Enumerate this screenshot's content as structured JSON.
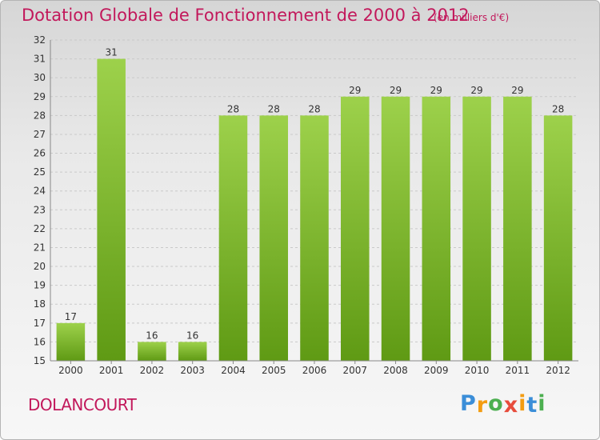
{
  "header": {
    "title": "Dotation Globale de Fonctionnement de 2000 à 2012",
    "subtitle": "(en milliers d'€)"
  },
  "footer": {
    "commune": "DOLANCOURT",
    "logo_letters": [
      "P",
      "r",
      "o",
      "x",
      "i",
      "t",
      "i"
    ],
    "logo_colors": [
      "#3b8ed8",
      "#f39c12",
      "#4caf50",
      "#e74c3c",
      "#f39c12",
      "#3b8ed8",
      "#4caf50"
    ]
  },
  "colors": {
    "bar_light": "#9dd14b",
    "bar_dark": "#5f9a14",
    "grid": "#c9c9c9",
    "axis": "#888888",
    "title": "#c2185b"
  },
  "chart_data": {
    "type": "bar",
    "title": "Dotation Globale de Fonctionnement de 2000 à 2012",
    "subtitle": "(en milliers d'€)",
    "xlabel": "",
    "ylabel": "",
    "categories": [
      "2000",
      "2001",
      "2002",
      "2003",
      "2004",
      "2005",
      "2006",
      "2007",
      "2008",
      "2009",
      "2010",
      "2011",
      "2012"
    ],
    "values": [
      17,
      31,
      16,
      16,
      28,
      28,
      28,
      29,
      29,
      29,
      29,
      29,
      28
    ],
    "ylim": [
      15,
      32
    ],
    "yticks": [
      15,
      16,
      17,
      18,
      19,
      20,
      21,
      22,
      23,
      24,
      25,
      26,
      27,
      28,
      29,
      30,
      31,
      32
    ],
    "grid": "horizontal dashed",
    "legend": "none"
  }
}
